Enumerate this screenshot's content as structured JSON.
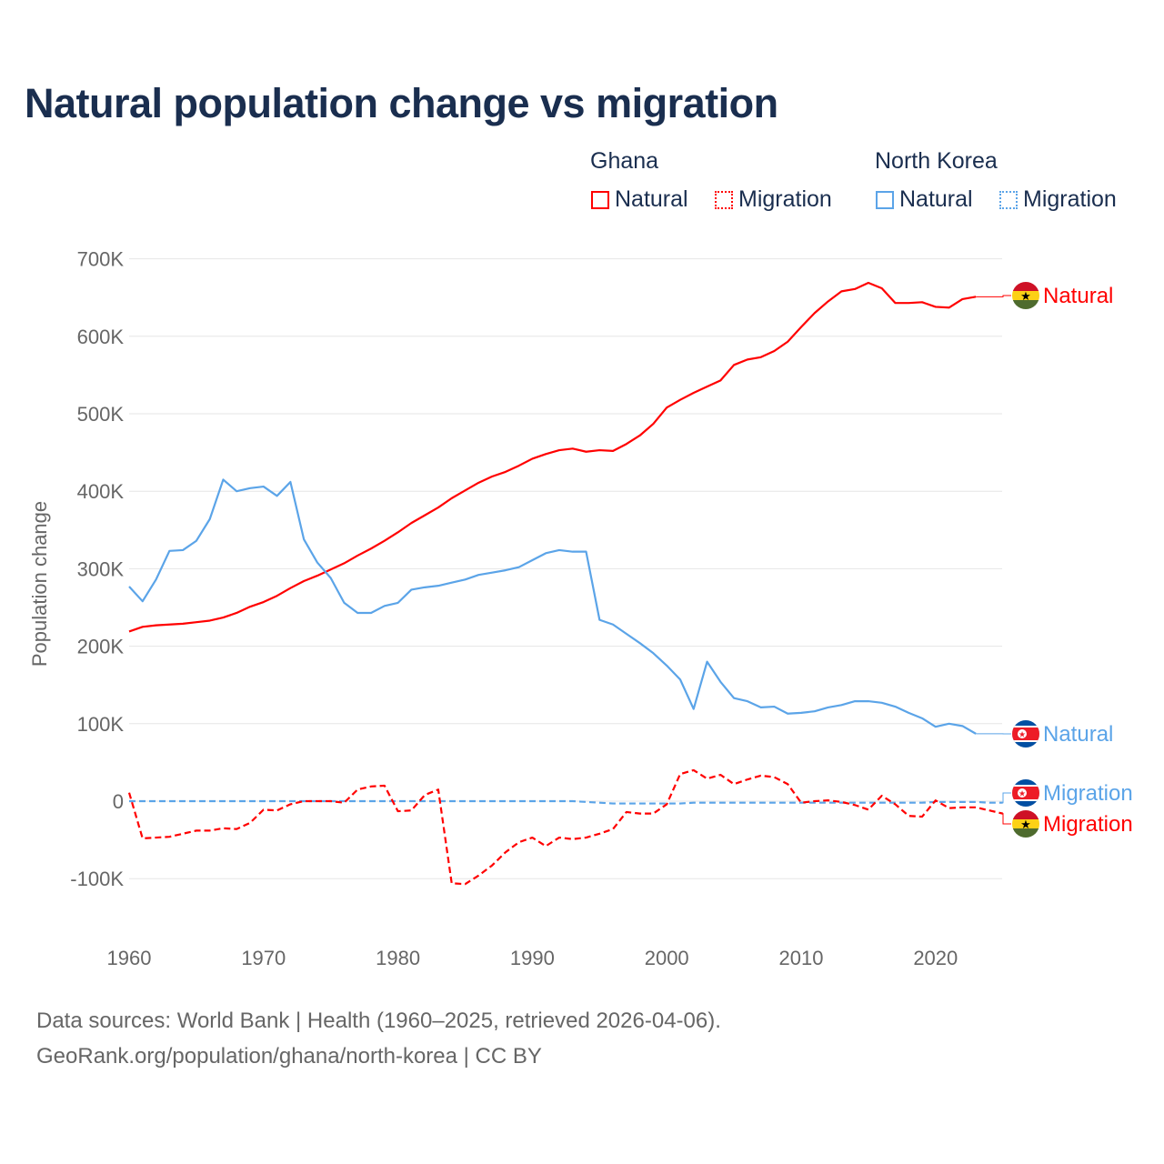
{
  "colors": {
    "ghana": "#ff0000",
    "north_korea": "#5ba4e8",
    "title": "#1a2e4f",
    "grid": "#e6e6e6"
  },
  "legend": {
    "groups": [
      {
        "name": "Ghana",
        "items": [
          "Natural",
          "Migration"
        ]
      },
      {
        "name": "North Korea",
        "items": [
          "Natural",
          "Migration"
        ]
      }
    ]
  },
  "footer": {
    "line1": "Data sources: World Bank | Health (1960–2025, retrieved 2026-04-06).",
    "line2": "GeoRank.org/population/ghana/north-korea | CC BY"
  },
  "chart_data": {
    "type": "line",
    "title": "Natural population change vs migration",
    "xlabel": "",
    "ylabel": "Population change",
    "xlim": [
      1960,
      2025
    ],
    "ylim": [
      -150000,
      700000
    ],
    "x_ticks": [
      "1960",
      "1970",
      "1980",
      "1990",
      "2000",
      "2010",
      "2020"
    ],
    "y_ticks": [
      {
        "value": 700000,
        "label": "700K"
      },
      {
        "value": 600000,
        "label": "600K"
      },
      {
        "value": 500000,
        "label": "500K"
      },
      {
        "value": 400000,
        "label": "400K"
      },
      {
        "value": 300000,
        "label": "300K"
      },
      {
        "value": 200000,
        "label": "200K"
      },
      {
        "value": 100000,
        "label": "100K"
      },
      {
        "value": 0,
        "label": "0"
      },
      {
        "value": -100000,
        "label": "-100K"
      }
    ],
    "grid": true,
    "series": [
      {
        "name": "Ghana Natural",
        "country": "ghana",
        "style": "solid",
        "end_label": "Natural",
        "start_year": 1960,
        "values_k": [
          219,
          225,
          227,
          228,
          229,
          231,
          233,
          237,
          243,
          251,
          257,
          265,
          275,
          284,
          291,
          299,
          307,
          317,
          326,
          336,
          347,
          359,
          369,
          379,
          391,
          401,
          411,
          419,
          425,
          433,
          442,
          448,
          453,
          455,
          451,
          453,
          452,
          461,
          472,
          487,
          508,
          518,
          527,
          535,
          543,
          563,
          570,
          573,
          581,
          593,
          612,
          630,
          645,
          658,
          661,
          669,
          662,
          643,
          643,
          644,
          638,
          637,
          648,
          651
        ]
      },
      {
        "name": "North Korea Natural",
        "country": "north_korea",
        "style": "solid",
        "end_label": "Natural",
        "start_year": 1960,
        "values_k": [
          277,
          258,
          286,
          323,
          324,
          336,
          364,
          415,
          400,
          404,
          406,
          394,
          412,
          338,
          308,
          288,
          256,
          243,
          243,
          252,
          256,
          273,
          276,
          278,
          282,
          286,
          292,
          295,
          298,
          302,
          311,
          320,
          324,
          322,
          322,
          234,
          228,
          216,
          204,
          191,
          175,
          157,
          119,
          180,
          154,
          133,
          129,
          121,
          122,
          113,
          114,
          116,
          121,
          124,
          129,
          129,
          127,
          122,
          114,
          107,
          96,
          100,
          97,
          87
        ]
      },
      {
        "name": "North Korea Migration",
        "country": "north_korea",
        "style": "dashed",
        "end_label": "Migration",
        "start_year": 1960,
        "values_k": [
          0,
          0,
          0,
          0,
          0,
          0,
          0,
          0,
          0,
          0,
          0,
          0,
          0,
          0,
          0,
          0,
          0,
          0,
          0,
          0,
          0,
          0,
          0,
          0,
          0,
          0,
          0,
          0,
          0,
          0,
          0,
          0,
          0,
          0,
          -1,
          -2,
          -3,
          -3,
          -3,
          -3,
          -3,
          -3,
          -2,
          -2,
          -2,
          -2,
          -2,
          -2,
          -2,
          -2,
          -2,
          -2,
          -2,
          -2,
          -2,
          -2,
          -2,
          -2,
          -2,
          -2,
          -1,
          -1,
          -1,
          -1,
          -2,
          -2
        ]
      },
      {
        "name": "Ghana Migration",
        "country": "ghana",
        "style": "dashed",
        "end_label": "Migration",
        "start_year": 1960,
        "values_k": [
          11,
          -48,
          -47,
          -46,
          -42,
          -38,
          -38,
          -35,
          -36,
          -28,
          -11,
          -12,
          -4,
          0,
          0,
          0,
          -2,
          15,
          19,
          20,
          -13,
          -12,
          8,
          15,
          -106,
          -107,
          -96,
          -83,
          -66,
          -53,
          -47,
          -58,
          -47,
          -49,
          -47,
          -42,
          -36,
          -14,
          -16,
          -16,
          -4,
          35,
          40,
          29,
          34,
          22,
          28,
          33,
          31,
          22,
          -2,
          0,
          1,
          -1,
          -5,
          -11,
          7,
          -4,
          -19,
          -20,
          1,
          -9,
          -8,
          -8,
          -12,
          -16
        ]
      }
    ]
  }
}
